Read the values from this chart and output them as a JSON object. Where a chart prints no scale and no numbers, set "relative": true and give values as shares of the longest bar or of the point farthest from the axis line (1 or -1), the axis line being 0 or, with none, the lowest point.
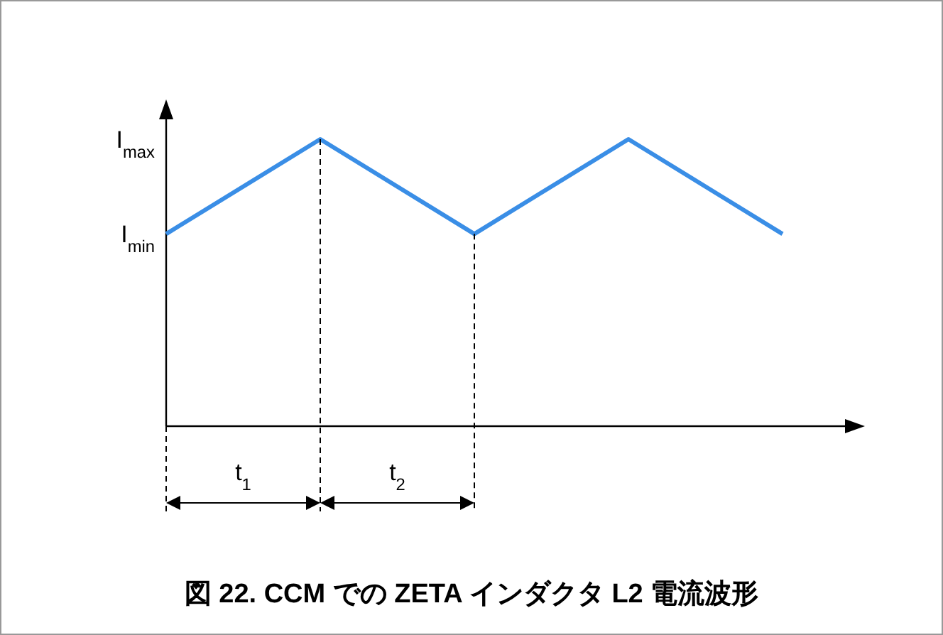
{
  "chart_data": {
    "type": "line",
    "title": "図 22. CCM での ZETA インダクタ L2 電流波形",
    "categories": [
      null,
      null,
      null,
      null,
      null
    ],
    "values": [
      0.67,
      1,
      0.67,
      1,
      0.67
    ],
    "color": "#3a8ee6",
    "relative": true,
    "annotations": [
      "I$_{max}$",
      "I$_{min}$",
      "t$_{1}$",
      "t$_{2}$"
    ]
  }
}
